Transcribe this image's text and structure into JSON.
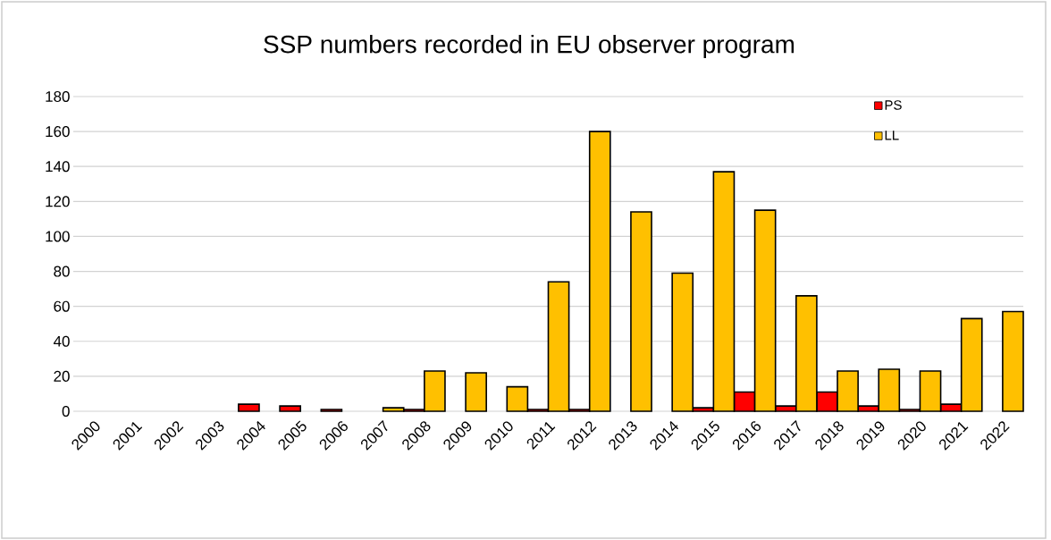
{
  "chart_data": {
    "type": "bar",
    "title": "SSP numbers recorded in EU observer program",
    "categories": [
      "2000",
      "2001",
      "2002",
      "2003",
      "2004",
      "2005",
      "2006",
      "2007",
      "2008",
      "2009",
      "2010",
      "2011",
      "2012",
      "2013",
      "2014",
      "2015",
      "2016",
      "2017",
      "2018",
      "2019",
      "2020",
      "2021",
      "2022"
    ],
    "series": [
      {
        "name": "PS",
        "color": "#ff0000",
        "values": [
          0,
          0,
          0,
          0,
          4,
          3,
          1,
          0,
          1,
          0,
          0,
          1,
          1,
          0,
          0,
          2,
          11,
          3,
          11,
          3,
          1,
          4,
          0
        ]
      },
      {
        "name": "LL",
        "color": "#ffc000",
        "values": [
          0,
          0,
          0,
          0,
          0,
          0,
          0,
          2,
          23,
          22,
          14,
          74,
          160,
          114,
          79,
          137,
          115,
          66,
          23,
          24,
          23,
          53,
          57
        ]
      }
    ],
    "ylim": [
      0,
      180
    ],
    "yticks": [
      0,
      20,
      40,
      60,
      80,
      100,
      120,
      140,
      160,
      180
    ],
    "grid": "y",
    "legend": "top right"
  }
}
